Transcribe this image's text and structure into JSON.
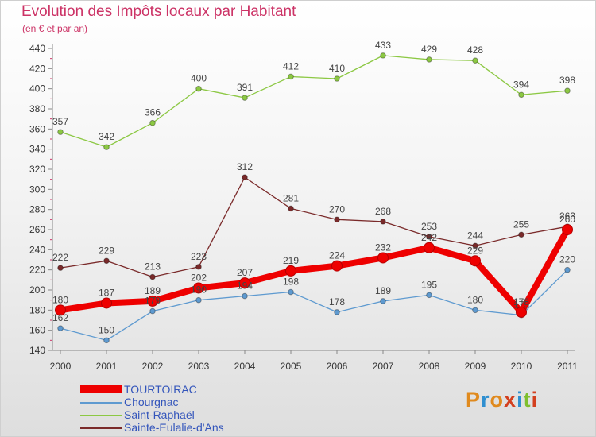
{
  "title": "Evolution des Impôts locaux par Habitant",
  "subtitle": "(en € et par an)",
  "logo": "Proxiti",
  "colors": {
    "tourtoirac": "#ee0000",
    "chourgnac": "#5e9ad0",
    "saint_raphael": "#8cc843",
    "sainte_eulalie": "#7a2a2a"
  },
  "chart_data": {
    "type": "line",
    "title": "Evolution des Impôts locaux par Habitant",
    "subtitle": "(en € et par an)",
    "xlabel": "",
    "ylabel": "",
    "x": [
      "2000",
      "2001",
      "2002",
      "2003",
      "2004",
      "2005",
      "2006",
      "2007",
      "2008",
      "2009",
      "2010",
      "2011"
    ],
    "ylim": [
      140,
      440
    ],
    "yticks": [
      140,
      160,
      180,
      200,
      220,
      240,
      260,
      280,
      300,
      320,
      340,
      360,
      380,
      400,
      420,
      440
    ],
    "grid": false,
    "legend_position": "bottom-left",
    "series": [
      {
        "key": "tourtoirac",
        "name": "TOURTOIRAC",
        "color": "#ee0000",
        "values": [
          180,
          187,
          189,
          202,
          207,
          219,
          224,
          232,
          242,
          229,
          178,
          260
        ]
      },
      {
        "key": "chourgnac",
        "name": "Chourgnac",
        "color": "#5e9ad0",
        "values": [
          162,
          150,
          179,
          190,
          194,
          198,
          178,
          189,
          195,
          180,
          175,
          220
        ]
      },
      {
        "key": "saint_raphael",
        "name": "Saint-Raphaël",
        "color": "#8cc843",
        "values": [
          357,
          342,
          366,
          400,
          391,
          412,
          410,
          433,
          429,
          428,
          394,
          398
        ]
      },
      {
        "key": "sainte_eulalie",
        "name": "Sainte-Eulalie-d'Ans",
        "color": "#7a2a2a",
        "values": [
          222,
          229,
          213,
          223,
          312,
          281,
          270,
          268,
          253,
          244,
          255,
          263
        ]
      }
    ]
  }
}
